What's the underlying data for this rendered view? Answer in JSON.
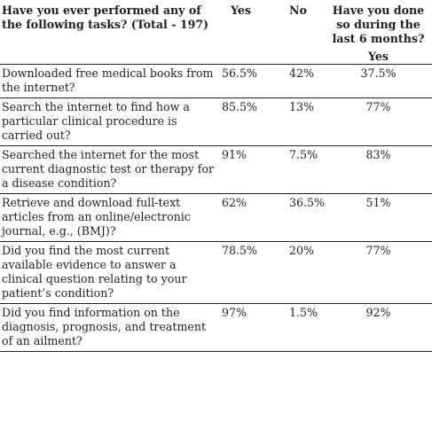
{
  "header": {
    "question": "Have you ever performed any of the following tasks? (Total - 197)",
    "yes": "Yes",
    "no": "No",
    "recent": "Have you done so during the last 6 months?",
    "recent_sub": "Yes"
  },
  "rows": [
    {
      "question": "Downloaded free medical books from the internet?",
      "yes": "56.5%",
      "no": "42%",
      "recent": "37.5%"
    },
    {
      "question": "Search the internet to find how a particular clinical procedure is carried out?",
      "yes": "85.5%",
      "no": "13%",
      "recent": "77%"
    },
    {
      "question": "Searched the internet for the most current diagnostic test or therapy for a disease condition?",
      "yes": "91%",
      "no": "7.5%",
      "recent": "83%"
    },
    {
      "question": "Retrieve and download full-text articles from an online/electronic journal, e.g., (BMJ)?",
      "yes": "62%",
      "no": "36.5%",
      "recent": "51%"
    },
    {
      "question": "Did you find the most current available evidence to answer a clinical question relating to your patient’s condition?",
      "yes": "78.5%",
      "no": "20%",
      "recent": "77%"
    },
    {
      "question": "Did you find information on the diagnosis, prognosis, and treatment of an ailment?",
      "yes": "97%",
      "no": "1.5%",
      "recent": "92%"
    }
  ]
}
